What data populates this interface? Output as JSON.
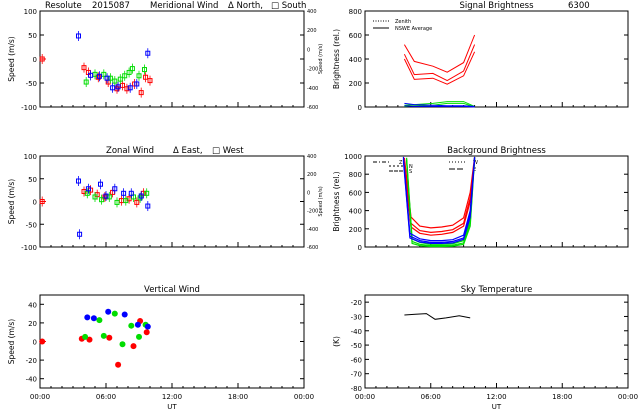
{
  "figure": {
    "x_ticks": [
      "00:00",
      "06:00",
      "12:00",
      "18:00",
      "00:00"
    ],
    "x_label": "UT",
    "colors": {
      "red": "#ff0000",
      "green": "#00dd00",
      "blue": "#0000ff",
      "black": "#000000"
    }
  },
  "chart_data": [
    {
      "id": "meridional",
      "type": "scatter",
      "title_parts": [
        "Resolute",
        "2015087",
        "Meridional Wind",
        "Δ North,",
        "□ South"
      ],
      "ylabel": "Speed (m/s)",
      "ylim": [
        -100,
        100
      ],
      "yticks": [
        "100",
        "50",
        "0",
        "-50",
        "-100"
      ],
      "right_ylabel": "Speed (m/s)",
      "right_yticks": [
        "400",
        "200",
        "0",
        "-200",
        "-400",
        "-600"
      ],
      "xlim": [
        0,
        24
      ],
      "series": [
        {
          "name": "red",
          "color": "#ff0000",
          "points": [
            [
              0.2,
              0
            ],
            [
              4.0,
              -18
            ],
            [
              4.4,
              -28
            ],
            [
              5.3,
              -38
            ],
            [
              6.2,
              -48
            ],
            [
              7.0,
              -62
            ],
            [
              7.5,
              -55
            ],
            [
              7.9,
              -62
            ],
            [
              8.6,
              -52
            ],
            [
              9.2,
              -70
            ],
            [
              9.6,
              -38
            ],
            [
              10.0,
              -45
            ]
          ]
        },
        {
          "name": "green",
          "color": "#00dd00",
          "points": [
            [
              4.2,
              -48
            ],
            [
              5.0,
              -32
            ],
            [
              5.8,
              -32
            ],
            [
              6.4,
              -40
            ],
            [
              6.8,
              -46
            ],
            [
              7.3,
              -42
            ],
            [
              7.7,
              -35
            ],
            [
              8.1,
              -28
            ],
            [
              8.4,
              -20
            ],
            [
              9.0,
              -35
            ],
            [
              9.5,
              -22
            ]
          ]
        },
        {
          "name": "blue",
          "color": "#0000ff",
          "points": [
            [
              3.5,
              48
            ],
            [
              4.6,
              -34
            ],
            [
              5.4,
              -36
            ],
            [
              6.1,
              -40
            ],
            [
              6.6,
              -60
            ],
            [
              7.1,
              -58
            ],
            [
              8.2,
              -60
            ],
            [
              8.8,
              -52
            ],
            [
              9.8,
              12
            ]
          ]
        }
      ]
    },
    {
      "id": "signal",
      "type": "line",
      "title": "Signal Brightness",
      "title_extra": "6300",
      "ylabel": "Brightness (rel.)",
      "ylim": [
        0,
        800
      ],
      "yticks": [
        "800",
        "600",
        "400",
        "200",
        "0"
      ],
      "xlim": [
        0,
        24
      ],
      "legend": [
        "Zenith",
        "NSWE Average"
      ],
      "series": [
        {
          "name": "red-1",
          "color": "#ff0000",
          "x": [
            3.6,
            4.5,
            6.2,
            7.5,
            9.0,
            10.0
          ],
          "y": [
            520,
            380,
            340,
            290,
            370,
            600
          ]
        },
        {
          "name": "red-2",
          "color": "#ff0000",
          "x": [
            3.6,
            4.5,
            6.2,
            7.5,
            9.0,
            10.0
          ],
          "y": [
            400,
            230,
            240,
            190,
            260,
            460
          ]
        },
        {
          "name": "red-3",
          "color": "#ff0000",
          "x": [
            3.6,
            4.5,
            6.2,
            7.5,
            9.0,
            10.0
          ],
          "y": [
            440,
            270,
            280,
            220,
            300,
            520
          ]
        },
        {
          "name": "green-1",
          "color": "#00dd00",
          "x": [
            3.6,
            4.5,
            6.2,
            7.5,
            9.0,
            10.0
          ],
          "y": [
            15,
            20,
            30,
            45,
            45,
            5
          ]
        },
        {
          "name": "green-2",
          "color": "#00dd00",
          "x": [
            3.6,
            4.5,
            6.2,
            7.5,
            9.0,
            10.0
          ],
          "y": [
            5,
            10,
            15,
            30,
            30,
            0
          ]
        },
        {
          "name": "blue-1",
          "color": "#0000ff",
          "x": [
            3.6,
            4.5,
            6.2,
            7.5,
            9.0,
            10.0
          ],
          "y": [
            30,
            20,
            15,
            10,
            10,
            5
          ]
        },
        {
          "name": "blue-2",
          "color": "#0000ff",
          "x": [
            3.6,
            4.5,
            6.2,
            7.5,
            9.0,
            10.0
          ],
          "y": [
            10,
            5,
            5,
            5,
            5,
            0
          ]
        }
      ]
    },
    {
      "id": "zonal",
      "type": "scatter",
      "title_parts": [
        "Zonal Wind",
        "Δ East,",
        "□ West"
      ],
      "ylabel": "Speed (m/s)",
      "ylim": [
        -100,
        100
      ],
      "yticks": [
        "100",
        "50",
        "0",
        "-50",
        "-100"
      ],
      "right_ylabel": "Speed (m/s)",
      "right_yticks": [
        "400",
        "200",
        "0",
        "-200",
        "-400",
        "-600"
      ],
      "xlim": [
        0,
        24
      ],
      "series": [
        {
          "name": "red",
          "color": "#ff0000",
          "points": [
            [
              0.2,
              0
            ],
            [
              4.0,
              22
            ],
            [
              4.6,
              25
            ],
            [
              5.2,
              15
            ],
            [
              5.9,
              10
            ],
            [
              6.6,
              20
            ],
            [
              7.4,
              2
            ],
            [
              8.1,
              6
            ],
            [
              8.8,
              -2
            ],
            [
              9.4,
              18
            ]
          ]
        },
        {
          "name": "green",
          "color": "#00dd00",
          "points": [
            [
              4.3,
              18
            ],
            [
              5.0,
              10
            ],
            [
              5.6,
              4
            ],
            [
              6.3,
              10
            ],
            [
              7.0,
              -2
            ],
            [
              7.8,
              2
            ],
            [
              8.5,
              10
            ],
            [
              9.1,
              8
            ],
            [
              9.7,
              18
            ]
          ]
        },
        {
          "name": "blue",
          "color": "#0000ff",
          "points": [
            [
              3.5,
              45
            ],
            [
              3.6,
              -72
            ],
            [
              4.4,
              28
            ],
            [
              5.5,
              38
            ],
            [
              6.0,
              12
            ],
            [
              6.8,
              28
            ],
            [
              7.6,
              18
            ],
            [
              8.3,
              18
            ],
            [
              9.2,
              12
            ],
            [
              9.8,
              -10
            ]
          ]
        }
      ]
    },
    {
      "id": "background",
      "type": "line",
      "title": "Background Brightness",
      "ylabel": "Brightness (rel.)",
      "ylim": [
        0,
        1000
      ],
      "yticks": [
        "1000",
        "800",
        "600",
        "400",
        "200",
        "0"
      ],
      "xlim": [
        0,
        24
      ],
      "legend": [
        "Z",
        "N",
        "S",
        "W",
        "E"
      ],
      "series": [
        {
          "name": "red-1",
          "color": "#ff0000",
          "x": [
            3.6,
            4.2,
            5.0,
            6.0,
            7.0,
            8.0,
            9.0,
            9.6,
            10.0
          ],
          "y": [
            980,
            330,
            230,
            210,
            220,
            240,
            320,
            600,
            990
          ]
        },
        {
          "name": "red-2",
          "color": "#ff0000",
          "x": [
            3.6,
            4.2,
            5.0,
            6.0,
            7.0,
            8.0,
            9.0,
            9.6,
            10.0
          ],
          "y": [
            900,
            260,
            180,
            160,
            170,
            190,
            260,
            540,
            960
          ]
        },
        {
          "name": "red-3",
          "color": "#ff0000",
          "x": [
            3.6,
            4.2,
            5.0,
            6.0,
            7.0,
            8.0,
            9.0,
            9.6,
            10.0
          ],
          "y": [
            860,
            220,
            150,
            130,
            140,
            160,
            230,
            500,
            940
          ]
        },
        {
          "name": "green-1",
          "color": "#00dd00",
          "x": [
            3.8,
            4.3,
            5.0,
            6.0,
            7.0,
            8.0,
            9.0,
            9.6,
            10.0
          ],
          "y": [
            980,
            90,
            50,
            30,
            30,
            35,
            70,
            300,
            990
          ]
        },
        {
          "name": "green-2",
          "color": "#00dd00",
          "x": [
            3.8,
            4.3,
            5.0,
            6.0,
            7.0,
            8.0,
            9.0,
            9.6,
            10.0
          ],
          "y": [
            960,
            60,
            30,
            15,
            15,
            20,
            45,
            260,
            980
          ]
        },
        {
          "name": "green-3",
          "color": "#00dd00",
          "x": [
            3.8,
            4.3,
            5.0,
            6.0,
            7.0,
            8.0,
            9.0,
            9.6,
            10.0
          ],
          "y": [
            950,
            40,
            15,
            5,
            5,
            10,
            30,
            230,
            970
          ]
        },
        {
          "name": "blue-1",
          "color": "#0000ff",
          "x": [
            3.5,
            4.1,
            5.0,
            6.0,
            7.0,
            8.0,
            9.0,
            9.6,
            10.0
          ],
          "y": [
            990,
            150,
            90,
            70,
            70,
            80,
            130,
            400,
            990
          ]
        },
        {
          "name": "blue-2",
          "color": "#0000ff",
          "x": [
            3.5,
            4.1,
            5.0,
            6.0,
            7.0,
            8.0,
            9.0,
            9.6,
            10.0
          ],
          "y": [
            970,
            120,
            70,
            50,
            50,
            60,
            100,
            360,
            980
          ]
        },
        {
          "name": "blue-3",
          "color": "#0000ff",
          "x": [
            3.5,
            4.1,
            5.0,
            6.0,
            7.0,
            8.0,
            9.0,
            9.6,
            10.0
          ],
          "y": [
            950,
            100,
            55,
            40,
            40,
            45,
            85,
            330,
            970
          ]
        }
      ]
    },
    {
      "id": "vertical",
      "type": "scatter",
      "title": "Vertical Wind",
      "ylabel": "Speed (m/s)",
      "ylim": [
        -50,
        50
      ],
      "yticks": [
        "40",
        "20",
        "0",
        "-20",
        "-40"
      ],
      "ytick_values": [
        40,
        20,
        0,
        -20,
        -40
      ],
      "xlim": [
        0,
        24
      ],
      "series": [
        {
          "name": "red",
          "color": "#ff0000",
          "points": [
            [
              0.2,
              0
            ],
            [
              3.8,
              3
            ],
            [
              4.5,
              2
            ],
            [
              6.3,
              4
            ],
            [
              7.1,
              -25
            ],
            [
              8.5,
              -5
            ],
            [
              9.1,
              22
            ],
            [
              9.7,
              10
            ]
          ]
        },
        {
          "name": "green",
          "color": "#00dd00",
          "points": [
            [
              4.1,
              5
            ],
            [
              5.4,
              23
            ],
            [
              5.8,
              6
            ],
            [
              6.8,
              30
            ],
            [
              7.5,
              -3
            ],
            [
              8.3,
              17
            ],
            [
              9.0,
              5
            ],
            [
              9.6,
              18
            ]
          ]
        },
        {
          "name": "blue",
          "color": "#0000ff",
          "points": [
            [
              4.3,
              26
            ],
            [
              4.9,
              25
            ],
            [
              6.2,
              32
            ],
            [
              7.7,
              29
            ],
            [
              8.9,
              18
            ],
            [
              9.8,
              16
            ]
          ]
        }
      ]
    },
    {
      "id": "sky",
      "type": "line",
      "title": "Sky Temperature",
      "ylabel": "(K)",
      "ylim": [
        -80,
        -15
      ],
      "yticks": [
        "-20",
        "-30",
        "-40",
        "-50",
        "-60",
        "-70",
        "-80"
      ],
      "ytick_values": [
        -20,
        -30,
        -40,
        -50,
        -60,
        -70,
        -80
      ],
      "xlim": [
        0,
        24
      ],
      "series": [
        {
          "name": "sky-temp",
          "color": "#000000",
          "x": [
            3.6,
            4.6,
            5.6,
            6.4,
            7.4,
            8.6,
            9.6
          ],
          "y": [
            -29,
            -28.5,
            -28,
            -32,
            -31,
            -29.5,
            -31
          ]
        }
      ]
    }
  ]
}
